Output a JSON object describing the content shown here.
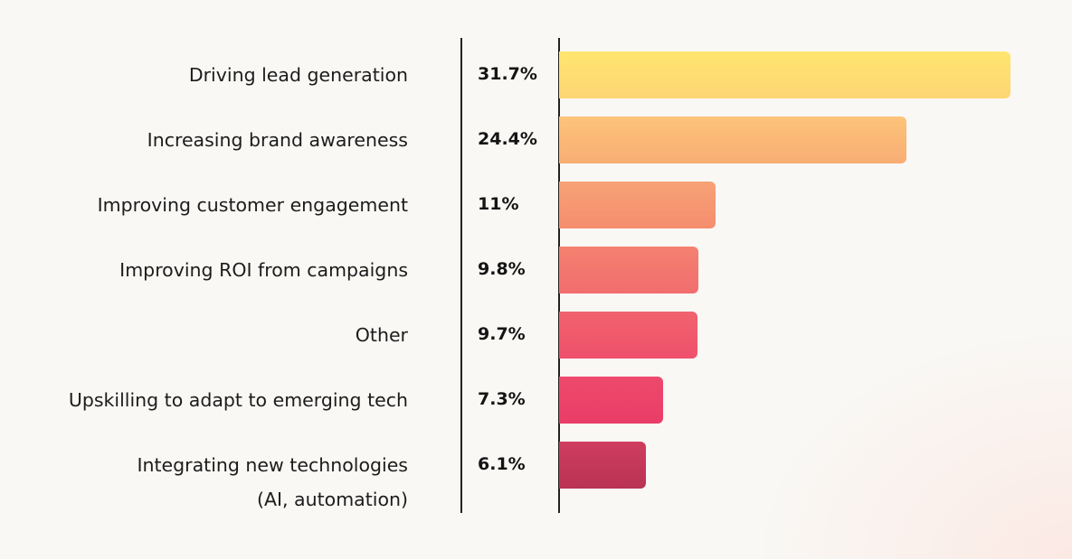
{
  "chart_data": {
    "type": "bar",
    "orientation": "horizontal",
    "categories": [
      [
        "Driving lead generation"
      ],
      [
        "Increasing brand awareness"
      ],
      [
        "Improving customer engagement"
      ],
      [
        "Improving ROI from campaigns"
      ],
      [
        "Other"
      ],
      [
        "Upskilling to adapt to emerging tech"
      ],
      [
        "Integrating new technologies",
        "(AI, automation)"
      ]
    ],
    "values": [
      31.7,
      24.4,
      11,
      9.8,
      9.7,
      7.3,
      6.1
    ],
    "value_labels": [
      "31.7%",
      "24.4%",
      "11%",
      "9.8%",
      "9.7%",
      "7.3%",
      "6.1%"
    ],
    "colors": [
      [
        "#ffe670",
        "#fdd574"
      ],
      [
        "#fcc47a",
        "#f9ad74"
      ],
      [
        "#f7a277",
        "#f58d6e"
      ],
      [
        "#f4816f",
        "#f16d6f"
      ],
      [
        "#f0636d",
        "#ef506c"
      ],
      [
        "#ed4a6c",
        "#ea3c68"
      ],
      [
        "#cf3d5f",
        "#b93354"
      ]
    ],
    "title": "",
    "xlabel": "",
    "ylabel": "",
    "xlim": [
      0,
      31.7
    ],
    "grid": false,
    "legend": "none"
  }
}
